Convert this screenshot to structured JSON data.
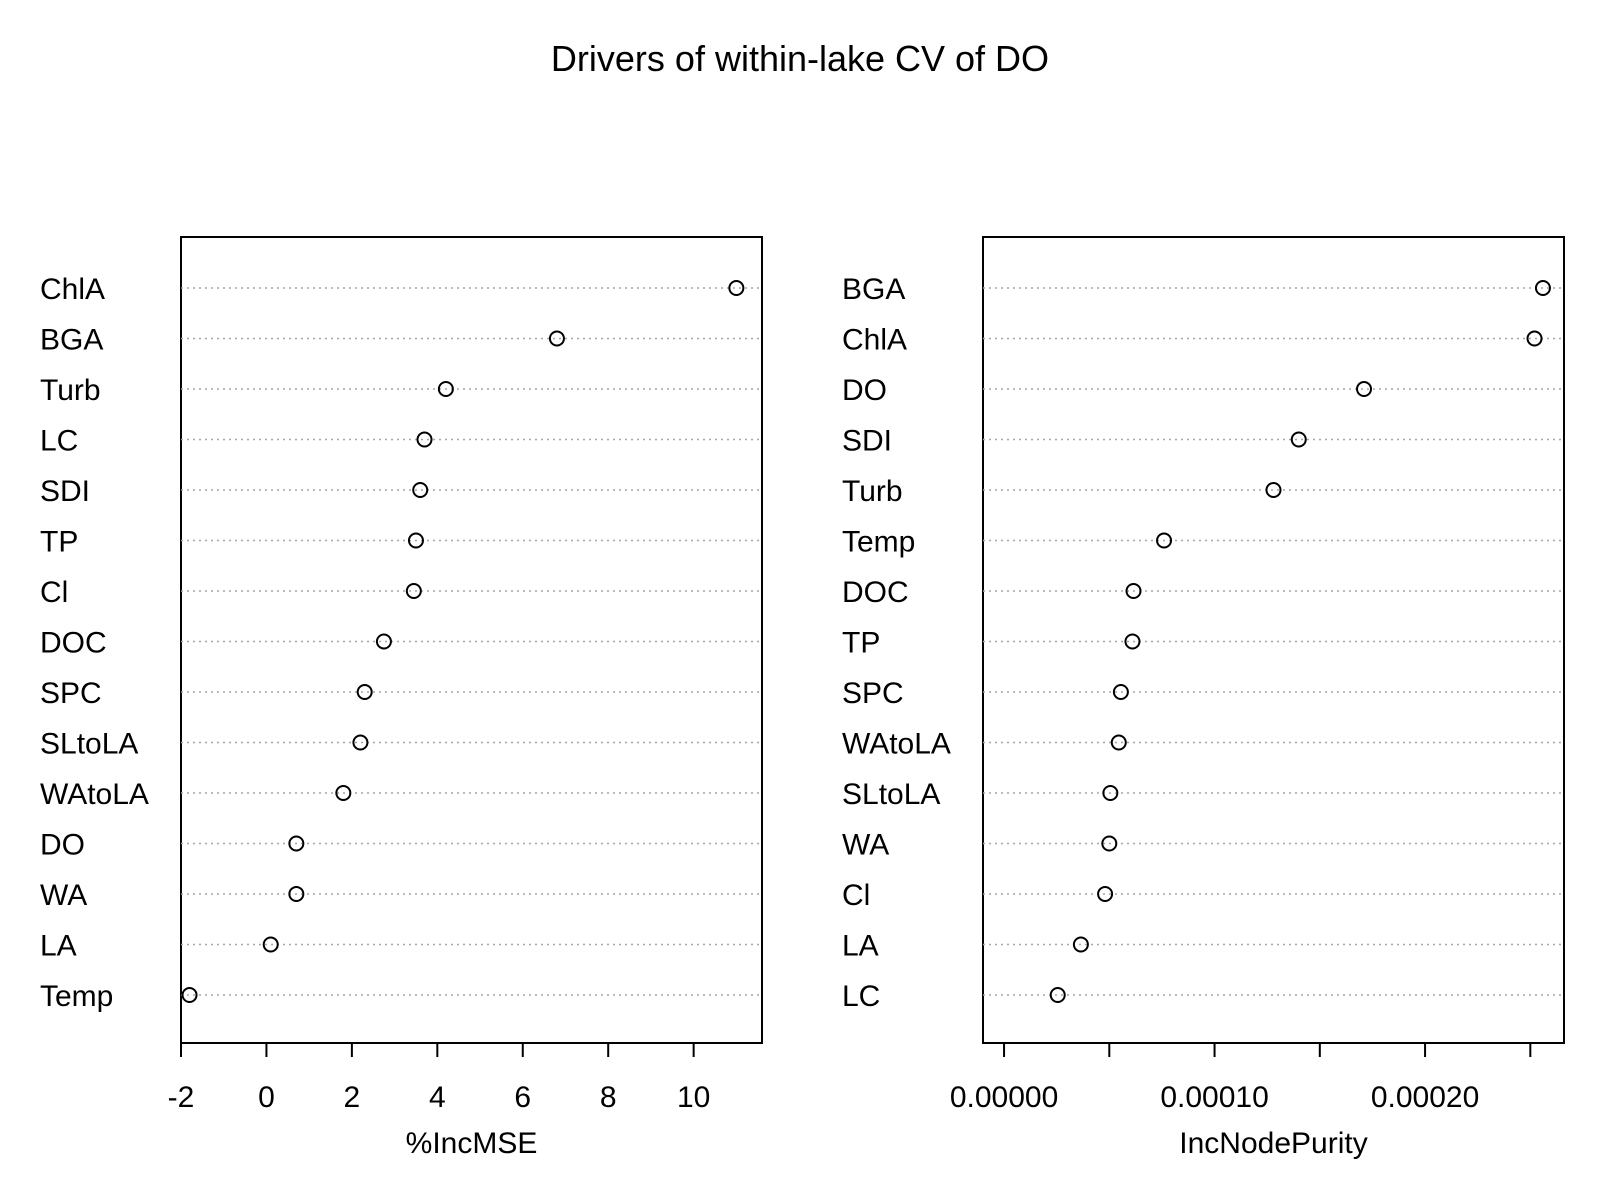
{
  "chart_data": {
    "title": "Drivers of within-lake CV of DO",
    "type": "dotchart",
    "panels": [
      {
        "xlabel": "%IncMSE",
        "xlim": [
          -2.0,
          11.6
        ],
        "ticks": [
          -2,
          0,
          2,
          4,
          6,
          8,
          10
        ],
        "tick_labels": [
          "-2",
          "0",
          "2",
          "4",
          "6",
          "8",
          "10"
        ],
        "categories": [
          "ChlA",
          "BGA",
          "Turb",
          "LC",
          "SDI",
          "TP",
          "Cl",
          "DOC",
          "SPC",
          "SLtoLA",
          "WAtoLA",
          "DO",
          "WA",
          "LA",
          "Temp"
        ],
        "values": [
          11.0,
          6.8,
          4.2,
          3.7,
          3.6,
          3.5,
          3.45,
          2.75,
          2.3,
          2.2,
          1.8,
          0.7,
          0.7,
          0.1,
          -1.8
        ]
      },
      {
        "xlabel": "IncNodePurity",
        "xlim": [
          -1e-05,
          0.000266
        ],
        "ticks": [
          0.0,
          5e-05,
          0.0001,
          0.00015,
          0.0002,
          0.00025
        ],
        "tick_labels": [
          "0.00000",
          "",
          "0.00010",
          "",
          "0.00020",
          ""
        ],
        "categories": [
          "BGA",
          "ChlA",
          "DO",
          "SDI",
          "Turb",
          "Temp",
          "DOC",
          "TP",
          "SPC",
          "WAtoLA",
          "SLtoLA",
          "WA",
          "Cl",
          "LA",
          "LC"
        ],
        "values": [
          0.000256,
          0.000252,
          0.000171,
          0.00014,
          0.000128,
          7.6e-05,
          6.15e-05,
          6.1e-05,
          5.55e-05,
          5.45e-05,
          5.05e-05,
          5e-05,
          4.8e-05,
          3.65e-05,
          2.55e-05
        ]
      }
    ]
  },
  "colors": {
    "points": "#000000",
    "dotted_guides": "#a6a6a6",
    "frame": "#000000",
    "background": "#ffffff"
  }
}
